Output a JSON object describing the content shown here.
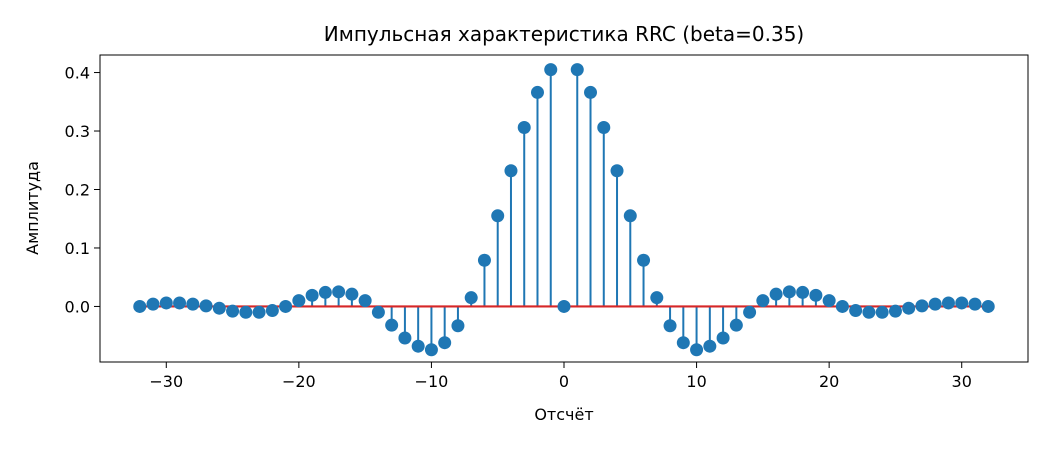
{
  "chart_data": {
    "type": "stem",
    "title": "Импульсная характеристика RRC (beta=0.35)",
    "xlabel": "Отсчёт",
    "ylabel": "Амплитуда",
    "xlim": [
      -35,
      35
    ],
    "ylim": [
      -0.095,
      0.43
    ],
    "xticks": [
      -30,
      -20,
      -10,
      0,
      10,
      20,
      30
    ],
    "xtick_labels": [
      "−30",
      "−20",
      "−10",
      "0",
      "10",
      "20",
      "30"
    ],
    "yticks": [
      0.0,
      0.1,
      0.2,
      0.3,
      0.4
    ],
    "ytick_labels": [
      "0.0",
      "0.1",
      "0.2",
      "0.3",
      "0.4"
    ],
    "grid": false,
    "legend": "none",
    "marker_color": "#1f77b4",
    "baseline_color": "#d62728",
    "x": [
      -32,
      -31,
      -30,
      -29,
      -28,
      -27,
      -26,
      -25,
      -24,
      -23,
      -22,
      -21,
      -20,
      -19,
      -18,
      -17,
      -16,
      -15,
      -14,
      -13,
      -12,
      -11,
      -10,
      -9,
      -8,
      -7,
      -6,
      -5,
      -4,
      -3,
      -2,
      -1,
      0,
      1,
      2,
      3,
      4,
      5,
      6,
      7,
      8,
      9,
      10,
      11,
      12,
      13,
      14,
      15,
      16,
      17,
      18,
      19,
      20,
      21,
      22,
      23,
      24,
      25,
      26,
      27,
      28,
      29,
      30,
      31,
      32
    ],
    "values": [
      0.0,
      0.004,
      0.006,
      0.006,
      0.004,
      0.001,
      -0.003,
      -0.008,
      -0.01,
      -0.01,
      -0.007,
      0.0,
      0.01,
      0.019,
      0.024,
      0.025,
      0.021,
      0.01,
      -0.01,
      -0.032,
      -0.054,
      -0.068,
      -0.074,
      -0.062,
      -0.033,
      0.015,
      0.079,
      0.155,
      0.232,
      0.306,
      0.366,
      0.405,
      0.0,
      0.405,
      0.366,
      0.306,
      0.232,
      0.155,
      0.079,
      0.015,
      -0.033,
      -0.062,
      -0.074,
      -0.068,
      -0.054,
      -0.032,
      -0.01,
      0.01,
      0.021,
      0.025,
      0.024,
      0.019,
      0.01,
      0.0,
      -0.007,
      -0.01,
      -0.01,
      -0.008,
      -0.003,
      0.001,
      0.004,
      0.006,
      0.006,
      0.004,
      0.0
    ]
  }
}
